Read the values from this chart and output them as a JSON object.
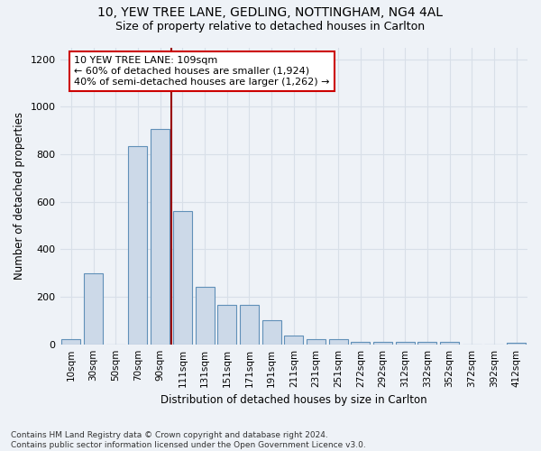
{
  "title1": "10, YEW TREE LANE, GEDLING, NOTTINGHAM, NG4 4AL",
  "title2": "Size of property relative to detached houses in Carlton",
  "xlabel": "Distribution of detached houses by size in Carlton",
  "ylabel": "Number of detached properties",
  "footnote": "Contains HM Land Registry data © Crown copyright and database right 2024.\nContains public sector information licensed under the Open Government Licence v3.0.",
  "bar_labels": [
    "10sqm",
    "30sqm",
    "50sqm",
    "70sqm",
    "90sqm",
    "111sqm",
    "131sqm",
    "151sqm",
    "171sqm",
    "191sqm",
    "211sqm",
    "231sqm",
    "251sqm",
    "272sqm",
    "292sqm",
    "312sqm",
    "332sqm",
    "352sqm",
    "372sqm",
    "392sqm",
    "412sqm"
  ],
  "bar_values": [
    20,
    300,
    0,
    835,
    905,
    560,
    240,
    165,
    165,
    100,
    35,
    22,
    22,
    10,
    10,
    10,
    10,
    10,
    0,
    0,
    5
  ],
  "bar_color": "#ccd9e8",
  "bar_edge_color": "#6090b8",
  "ylim": [
    0,
    1250
  ],
  "yticks": [
    0,
    200,
    400,
    600,
    800,
    1000,
    1200
  ],
  "vline_index": 5,
  "vline_color": "#990000",
  "annotation_text": "10 YEW TREE LANE: 109sqm\n← 60% of detached houses are smaller (1,924)\n40% of semi-detached houses are larger (1,262) →",
  "annotation_box_color": "#ffffff",
  "annotation_box_edge": "#cc0000",
  "bg_color": "#eef2f7",
  "grid_color": "#d8dfe8",
  "title1_fontsize": 10,
  "title2_fontsize": 9
}
